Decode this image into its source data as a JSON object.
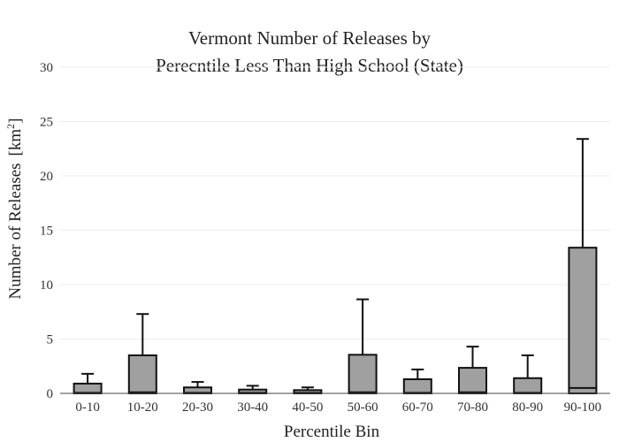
{
  "chart_data": {
    "type": "bar",
    "title_lines": [
      "Vermont Number of Releases by",
      "Perecntile Less Than High School (State)"
    ],
    "xlabel": "Percentile Bin",
    "ylabel": "Number of Releases",
    "ylabel_unit": "[km",
    "ylabel_unit_sup": "2",
    "ylabel_unit_close": "]",
    "ylim": [
      0,
      30
    ],
    "yticks": [
      0,
      5,
      10,
      15,
      20,
      25,
      30
    ],
    "grid": true,
    "categories": [
      "0-10",
      "10-20",
      "20-30",
      "30-40",
      "40-50",
      "50-60",
      "60-70",
      "70-80",
      "80-90",
      "90-100"
    ],
    "series": [
      {
        "values": [
          0.9,
          3.5,
          0.55,
          0.35,
          0.3,
          3.55,
          1.3,
          2.35,
          1.4,
          13.4
        ],
        "median": [
          0.05,
          0.1,
          0.05,
          0.05,
          0.05,
          0.1,
          0.05,
          0.1,
          0.05,
          0.5
        ],
        "error_upper": [
          1.8,
          7.3,
          1.05,
          0.7,
          0.55,
          8.65,
          2.2,
          4.3,
          3.5,
          23.4
        ]
      }
    ],
    "colors": {
      "bar_fill": "#a0a0a0",
      "bar_stroke": "#111111"
    }
  }
}
